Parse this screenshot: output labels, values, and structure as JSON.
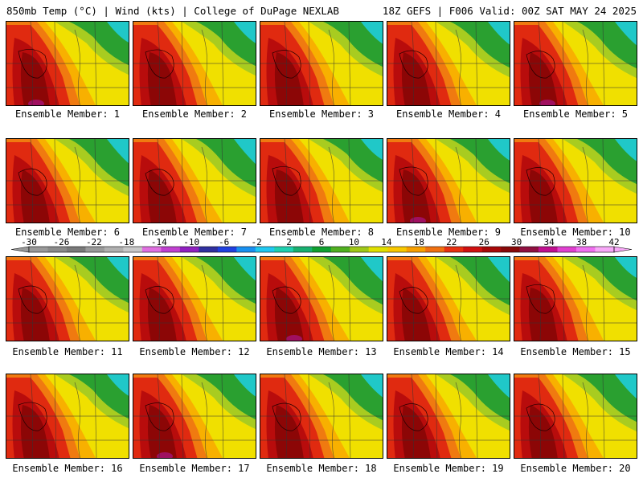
{
  "header": {
    "left_title": "850mb Temp (°C) | Wind (kts) | College of DuPage NEXLAB",
    "right_title": "18Z GEFS | F006 Valid: 00Z SAT MAY 24 2025"
  },
  "member_label_prefix": "Ensemble Member: ",
  "members": [
    {
      "label": "Ensemble Member: 1"
    },
    {
      "label": "Ensemble Member: 2"
    },
    {
      "label": "Ensemble Member: 3"
    },
    {
      "label": "Ensemble Member: 4"
    },
    {
      "label": "Ensemble Member: 5"
    },
    {
      "label": "Ensemble Member: 6"
    },
    {
      "label": "Ensemble Member: 7"
    },
    {
      "label": "Ensemble Member: 8"
    },
    {
      "label": "Ensemble Member: 9"
    },
    {
      "label": "Ensemble Member: 10"
    },
    {
      "label": "Ensemble Member: 11"
    },
    {
      "label": "Ensemble Member: 12"
    },
    {
      "label": "Ensemble Member: 13"
    },
    {
      "label": "Ensemble Member: 14"
    },
    {
      "label": "Ensemble Member: 15"
    },
    {
      "label": "Ensemble Member: 16"
    },
    {
      "label": "Ensemble Member: 17"
    },
    {
      "label": "Ensemble Member: 18"
    },
    {
      "label": "Ensemble Member: 19"
    },
    {
      "label": "Ensemble Member: 20"
    }
  ],
  "colorbar": {
    "tick_labels": [
      "-30",
      "-26",
      "-22",
      "-18",
      "-14",
      "-10",
      "-6",
      "-2",
      "2",
      "6",
      "10",
      "14",
      "18",
      "22",
      "26",
      "30",
      "34",
      "38",
      "42"
    ],
    "colors": [
      "#999999",
      "#8a8a8a",
      "#7a7a7a",
      "#9a9a9a",
      "#b0b0b0",
      "#c8c8c8",
      "#e070e0",
      "#c040d0",
      "#9020c0",
      "#3030a0",
      "#2040e0",
      "#1890f0",
      "#20c8f0",
      "#20d0b0",
      "#18b070",
      "#10a030",
      "#50b020",
      "#a0c818",
      "#e0e000",
      "#f8c800",
      "#f8a000",
      "#f07010",
      "#e83010",
      "#d01010",
      "#a80808",
      "#880808",
      "#901040",
      "#c01090",
      "#e040d0",
      "#f070f0",
      "#f8a8f8"
    ]
  }
}
